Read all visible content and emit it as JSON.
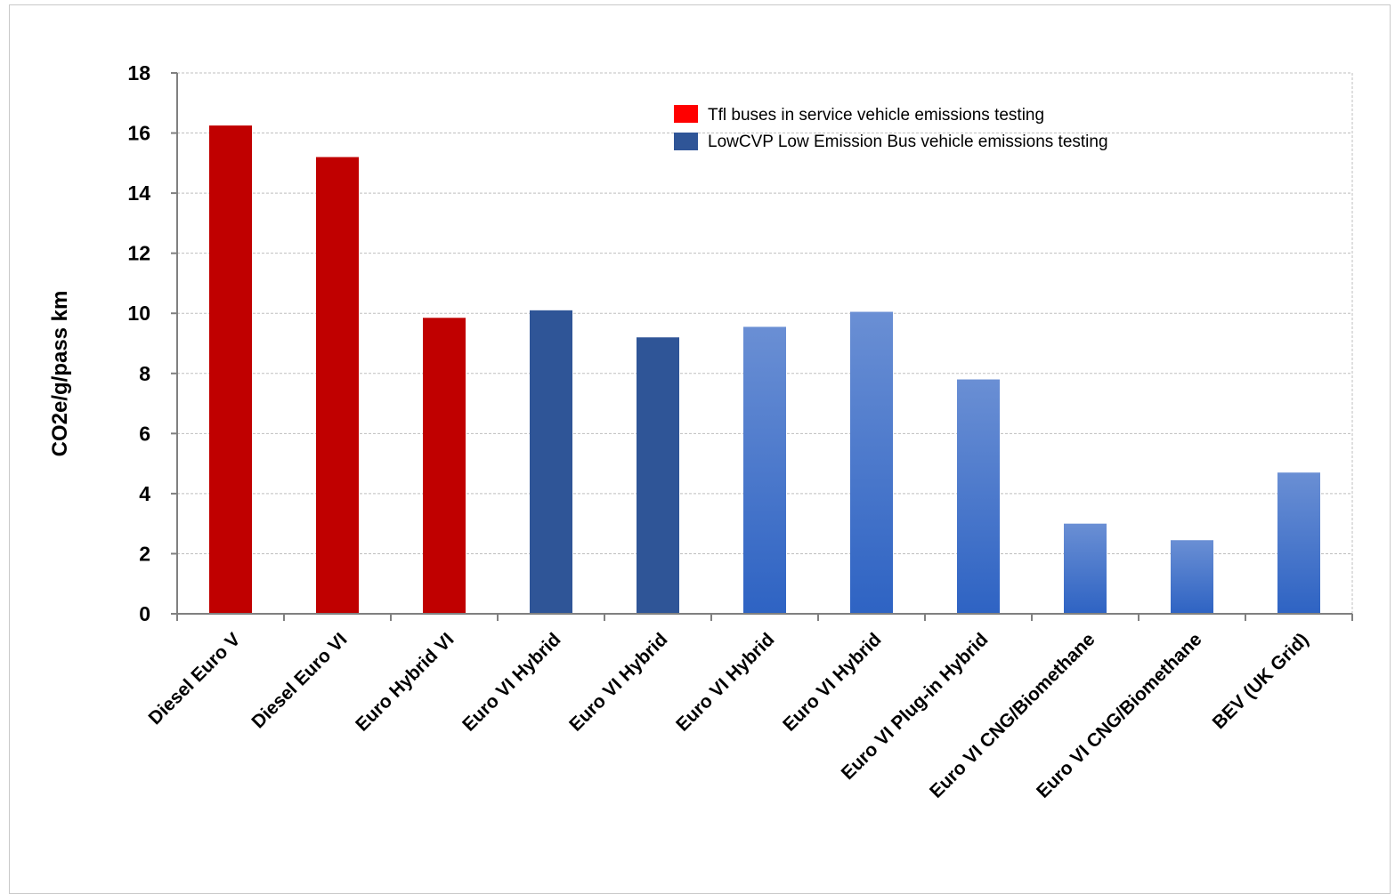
{
  "chart_data": {
    "type": "bar",
    "title": "",
    "xlabel": "",
    "ylabel": "CO2e/g/pass km",
    "ylim": [
      0,
      18
    ],
    "yticks": [
      0,
      2,
      4,
      6,
      8,
      10,
      12,
      14,
      16,
      18
    ],
    "grid": true,
    "legend_position": "top-right",
    "categories": [
      "Diesel Euro V",
      "Diesel Euro VI",
      "Euro Hybrid  VI",
      "Euro VI  Hybrid",
      "Euro VI Hybrid",
      "Euro VI Hybrid",
      "Euro VI Hybrid",
      "Euro VI Plug-in Hybrid",
      "Euro VI CNG/Biomethane",
      "Euro VI CNG/Biomethane",
      "BEV (UK Grid)"
    ],
    "values": [
      16.25,
      15.2,
      9.85,
      10.1,
      9.2,
      9.55,
      10.05,
      7.8,
      3.0,
      2.45,
      4.7
    ],
    "bar_styles": [
      "red",
      "red",
      "red",
      "darkblue",
      "darkblue",
      "gradient",
      "gradient",
      "gradient",
      "gradient",
      "gradient",
      "gradient"
    ],
    "legend": [
      {
        "label": "Tfl buses in service vehicle emissions testing",
        "color": "#ff0000"
      },
      {
        "label": "LowCVP Low Emission Bus vehicle emissions testing",
        "color": "#2f5597"
      }
    ],
    "colors": {
      "red": "#c00000",
      "darkblue": "#2f5597",
      "gradient_top": "#6a8fd4",
      "gradient_bottom": "#2e63c3",
      "grid": "#bfbfbf",
      "axis": "#808080"
    }
  }
}
